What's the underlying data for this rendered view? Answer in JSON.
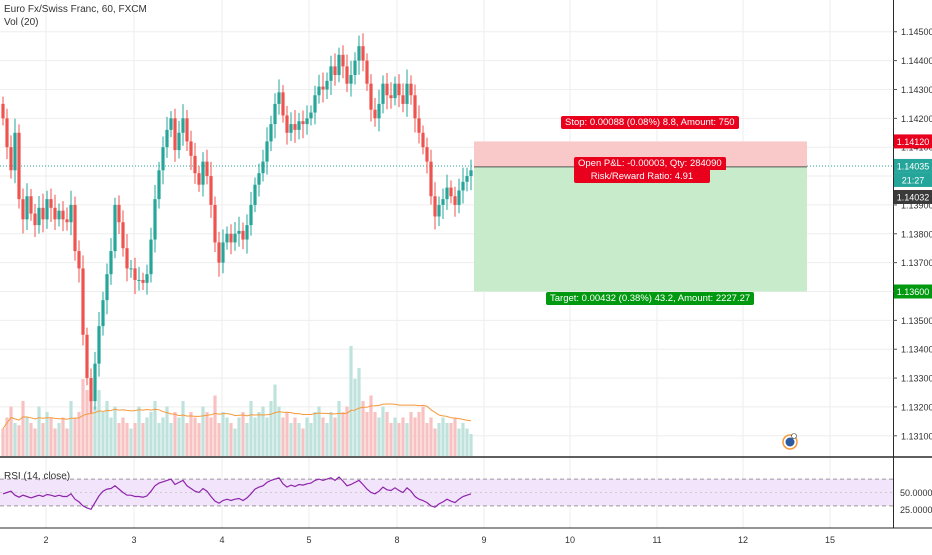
{
  "header": {
    "symbol_title": "Euro Fx/Swiss Franc, 60, FXCM",
    "vol_indicator": "Vol (20)",
    "rsi_indicator": "RSI (14, close)"
  },
  "price_axis": {
    "ticks": [
      "1.14500",
      "1.14400",
      "1.14300",
      "1.14200",
      "1.14100",
      "1.14000",
      "1.13900",
      "1.13800",
      "1.13700",
      "1.13600",
      "1.13500",
      "1.13400",
      "1.13300",
      "1.13200",
      "1.13100"
    ],
    "tick_values": [
      1.145,
      1.144,
      1.143,
      1.142,
      1.141,
      1.14,
      1.139,
      1.138,
      1.137,
      1.136,
      1.135,
      1.134,
      1.133,
      1.132,
      1.131
    ],
    "stop_label": "1.14120",
    "stop_value": 1.1412,
    "last_price_label": "1.14035",
    "last_price_value": 1.14035,
    "countdown_label": "21:27",
    "current_label": "1.14032",
    "target_label": "1.13600",
    "target_value": 1.136
  },
  "rsi_axis": {
    "ticks": [
      "50.0000",
      "25.0000"
    ],
    "tick_values": [
      50,
      25
    ]
  },
  "time_axis": {
    "labels": [
      "2",
      "3",
      "4",
      "5",
      "8",
      "9",
      "10",
      "11",
      "12",
      "15"
    ]
  },
  "position_tool": {
    "stop_text": "Stop: 0.00088 (0.08%) 8.8, Amount: 750",
    "open_pl_text": "Open P&L: -0.00003, Qty: 284090",
    "ratio_text": "Risk/Reward Ratio: 4.91",
    "target_text": "Target: 0.00432 (0.38%) 43.2, Amount: 2227.27",
    "entry_value": 1.14032
  },
  "colors": {
    "up": "#26a69a",
    "down": "#ef5350",
    "stop_zone": "#f9c9c9",
    "target_zone": "#c8eccb",
    "rsi_line": "#8e24aa",
    "rsi_band": "#f1e4fb",
    "vol_ma": "#f5993a",
    "stop_tag": "#e8001c",
    "target_tag": "#00990f"
  },
  "chart_data": {
    "type": "candlestick",
    "y_range": [
      1.1303,
      1.1461
    ],
    "closes": [
      1.142,
      1.141,
      1.1402,
      1.1415,
      1.1392,
      1.1385,
      1.1393,
      1.1387,
      1.1383,
      1.1389,
      1.1385,
      1.1392,
      1.1389,
      1.1385,
      1.1388,
      1.1385,
      1.1384,
      1.139,
      1.1374,
      1.1368,
      1.1345,
      1.133,
      1.1322,
      1.1335,
      1.1348,
      1.1357,
      1.1366,
      1.1374,
      1.139,
      1.1384,
      1.1375,
      1.1368,
      1.1368,
      1.1364,
      1.1364,
      1.1363,
      1.1366,
      1.1378,
      1.1392,
      1.1402,
      1.141,
      1.1416,
      1.142,
      1.1409,
      1.1415,
      1.142,
      1.1412,
      1.1407,
      1.1401,
      1.1397,
      1.1405,
      1.14,
      1.139,
      1.1377,
      1.137,
      1.1377,
      1.138,
      1.1377,
      1.138,
      1.1381,
      1.1378,
      1.1383,
      1.139,
      1.1397,
      1.1401,
      1.1405,
      1.1412,
      1.1418,
      1.1425,
      1.1429,
      1.1421,
      1.1415,
      1.1418,
      1.1416,
      1.1419,
      1.1418,
      1.142,
      1.1422,
      1.1428,
      1.1431,
      1.143,
      1.1433,
      1.1438,
      1.1435,
      1.1442,
      1.1438,
      1.1432,
      1.1435,
      1.144,
      1.1445,
      1.144,
      1.1432,
      1.1423,
      1.142,
      1.1425,
      1.1432,
      1.1428,
      1.1427,
      1.1432,
      1.1428,
      1.1425,
      1.1432,
      1.1428,
      1.142,
      1.1415,
      1.141,
      1.1405,
      1.1393,
      1.1386,
      1.139,
      1.1392,
      1.1396,
      1.1393,
      1.139,
      1.1395,
      1.1398,
      1.14,
      1.1402
    ],
    "rsi_values": [
      48,
      50,
      52,
      46,
      43,
      46,
      44,
      42,
      44,
      46,
      44,
      47,
      46,
      44,
      46,
      44,
      44,
      48,
      40,
      36,
      30,
      27,
      25,
      35,
      45,
      52,
      55,
      56,
      60,
      55,
      50,
      46,
      46,
      44,
      44,
      43,
      45,
      52,
      60,
      64,
      66,
      68,
      70,
      62,
      65,
      68,
      60,
      56,
      52,
      50,
      56,
      52,
      44,
      37,
      34,
      38,
      40,
      38,
      40,
      41,
      38,
      42,
      48,
      55,
      58,
      60,
      65,
      68,
      70,
      72,
      63,
      58,
      61,
      59,
      62,
      61,
      63,
      64,
      68,
      70,
      68,
      70,
      72,
      68,
      73,
      67,
      60,
      62,
      65,
      68,
      62,
      55,
      50,
      48,
      52,
      58,
      54,
      53,
      57,
      53,
      50,
      57,
      52,
      44,
      40,
      38,
      35,
      30,
      28,
      33,
      36,
      40,
      37,
      35,
      40,
      44,
      46,
      48
    ],
    "volumes": [
      0.25,
      0.35,
      0.45,
      0.3,
      0.28,
      0.5,
      0.35,
      0.3,
      0.25,
      0.45,
      0.3,
      0.4,
      0.35,
      0.25,
      0.3,
      0.35,
      0.25,
      0.5,
      0.35,
      0.4,
      0.7,
      0.6,
      0.55,
      0.45,
      0.6,
      0.4,
      0.5,
      0.35,
      0.45,
      0.3,
      0.35,
      0.3,
      0.25,
      0.3,
      0.45,
      0.3,
      0.35,
      0.4,
      0.5,
      0.3,
      0.35,
      0.45,
      0.3,
      0.4,
      0.35,
      0.5,
      0.3,
      0.4,
      0.35,
      0.3,
      0.45,
      0.4,
      0.35,
      0.55,
      0.3,
      0.4,
      0.35,
      0.3,
      0.25,
      0.35,
      0.4,
      0.3,
      0.5,
      0.35,
      0.4,
      0.45,
      0.35,
      0.5,
      0.65,
      0.45,
      0.35,
      0.4,
      0.3,
      0.35,
      0.3,
      0.25,
      0.35,
      0.3,
      0.4,
      0.45,
      0.35,
      0.3,
      0.4,
      0.35,
      0.5,
      0.4,
      0.45,
      1.0,
      0.7,
      0.8,
      0.5,
      0.4,
      0.55,
      0.4,
      0.35,
      0.45,
      0.4,
      0.3,
      0.35,
      0.3,
      0.35,
      0.3,
      0.4,
      0.35,
      0.4,
      0.45,
      0.3,
      0.35,
      0.25,
      0.3,
      0.35,
      0.3,
      0.3,
      0.35,
      0.25,
      0.3,
      0.25,
      0.2
    ]
  }
}
